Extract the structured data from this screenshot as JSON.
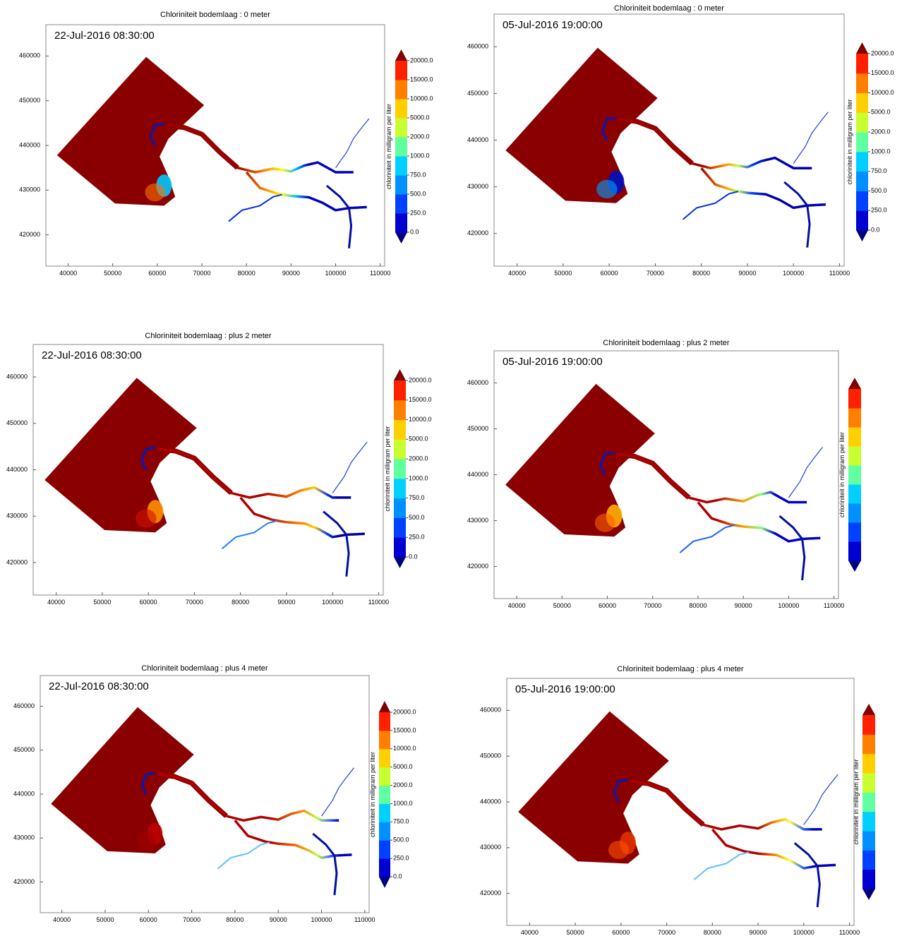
{
  "colorbar_colors": [
    "#00007f",
    "#0000d0",
    "#0040ff",
    "#0090ff",
    "#00d0ff",
    "#60ffa0",
    "#c8ff30",
    "#ffd000",
    "#ff8000",
    "#ff2000",
    "#800000"
  ],
  "panels": [
    {
      "title": "Chloriniteit bodemlaag : 0 meter",
      "timestamp": "22-Jul-2016 08:30:00",
      "xlim": [
        35000,
        111000
      ],
      "ylim": [
        413000,
        467000
      ],
      "xticks": [
        40000,
        50000,
        60000,
        70000,
        80000,
        90000,
        100000,
        110000
      ],
      "yticks": [
        420000,
        430000,
        440000,
        450000,
        460000
      ],
      "colorbar_label": "chloriniteit in milligram per liter",
      "colorbar_ticks": [
        {
          "value": 0,
          "label": "0.0"
        },
        {
          "value": 250,
          "label": "250.0"
        },
        {
          "value": 500,
          "label": "500.0"
        },
        {
          "value": 750,
          "label": "750.0"
        },
        {
          "value": 1000,
          "label": "1000.0"
        },
        {
          "value": 2000,
          "label": "2000.0"
        },
        {
          "value": 5000,
          "label": "5000.0"
        },
        {
          "value": 10000,
          "label": "10000.0"
        },
        {
          "value": 15000,
          "label": "15000.0"
        },
        {
          "value": 20000,
          "label": "20000.0"
        }
      ]
    },
    {
      "title": "Chloriniteit bodemlaag : 0 meter",
      "timestamp": "05-Jul-2016 19:00:00",
      "xlim": [
        35000,
        111000
      ],
      "ylim": [
        413000,
        467000
      ],
      "xticks": [
        40000,
        50000,
        60000,
        70000,
        80000,
        90000,
        100000,
        110000
      ],
      "yticks": [
        420000,
        430000,
        440000,
        450000,
        460000
      ],
      "colorbar_label": "chloriniteit in milligram per liter",
      "colorbar_ticks": [
        {
          "value": 0,
          "label": "0.0"
        },
        {
          "value": 250,
          "label": "250.0"
        },
        {
          "value": 500,
          "label": "500.0"
        },
        {
          "value": 750,
          "label": "750.0"
        },
        {
          "value": 1000,
          "label": "1000.0"
        },
        {
          "value": 2000,
          "label": "2000.0"
        },
        {
          "value": 5000,
          "label": "5000.0"
        },
        {
          "value": 10000,
          "label": "10000.0"
        },
        {
          "value": 15000,
          "label": "15000.0"
        },
        {
          "value": 20000,
          "label": "20000.0"
        }
      ]
    },
    {
      "title": "Chloriniteit bodemlaag : plus 2 meter",
      "timestamp": "22-Jul-2016 08:30:00",
      "xlim": [
        35000,
        111000
      ],
      "ylim": [
        413000,
        467000
      ],
      "xticks": [
        40000,
        50000,
        60000,
        70000,
        80000,
        90000,
        100000,
        110000
      ],
      "yticks": [
        420000,
        430000,
        440000,
        450000,
        460000
      ],
      "colorbar_label": "chloriniteit in milligram per liter",
      "colorbar_ticks": [
        {
          "value": 0,
          "label": "0.0"
        },
        {
          "value": 250,
          "label": "250.0"
        },
        {
          "value": 500,
          "label": "500.0"
        },
        {
          "value": 750,
          "label": "750.0"
        },
        {
          "value": 1000,
          "label": "1000.0"
        },
        {
          "value": 2000,
          "label": "2000.0"
        },
        {
          "value": 5000,
          "label": "5000.0"
        },
        {
          "value": 10000,
          "label": "10000.0"
        },
        {
          "value": 15000,
          "label": "15000.0"
        },
        {
          "value": 20000,
          "label": "20000.0"
        }
      ]
    },
    {
      "title": "Chloriniteit bodemlaag : plus 2 meter",
      "timestamp": "05-Jul-2016 19:00:00",
      "xlim": [
        35000,
        111000
      ],
      "ylim": [
        413000,
        467000
      ],
      "xticks": [
        40000,
        50000,
        60000,
        70000,
        80000,
        90000,
        100000,
        110000
      ],
      "yticks": [
        420000,
        430000,
        440000,
        450000,
        460000
      ],
      "colorbar_label": "chloriniteit in milligram per liter"
    },
    {
      "title": "Chloriniteit bodemlaag : plus 4 meter",
      "timestamp": "22-Jul-2016 08:30:00",
      "xlim": [
        35000,
        111000
      ],
      "ylim": [
        413000,
        467000
      ],
      "xticks": [
        40000,
        50000,
        60000,
        70000,
        80000,
        90000,
        100000,
        110000
      ],
      "yticks": [
        420000,
        430000,
        440000,
        450000,
        460000
      ],
      "colorbar_label": "chloriniteit in milligram per liter",
      "colorbar_ticks": [
        {
          "value": 0,
          "label": "0.0"
        },
        {
          "value": 250,
          "label": "250.0"
        },
        {
          "value": 500,
          "label": "500.0"
        },
        {
          "value": 750,
          "label": "750.0"
        },
        {
          "value": 1000,
          "label": "1000.0"
        },
        {
          "value": 2000,
          "label": "2000.0"
        },
        {
          "value": 5000,
          "label": "5000.0"
        },
        {
          "value": 10000,
          "label": "10000.0"
        },
        {
          "value": 15000,
          "label": "15000.0"
        },
        {
          "value": 20000,
          "label": "20000.0"
        }
      ]
    },
    {
      "title": "Chloriniteit bodemlaag : plus 4 meter",
      "timestamp": "05-Jul-2016 19:00:00",
      "xlim": [
        35000,
        111000
      ],
      "ylim": [
        413000,
        467000
      ],
      "xticks": [
        40000,
        50000,
        60000,
        70000,
        80000,
        90000,
        100000,
        110000
      ],
      "yticks": [
        420000,
        430000,
        440000,
        450000,
        460000
      ],
      "colorbar_label": "chloriniteit in milligram per liter"
    }
  ]
}
